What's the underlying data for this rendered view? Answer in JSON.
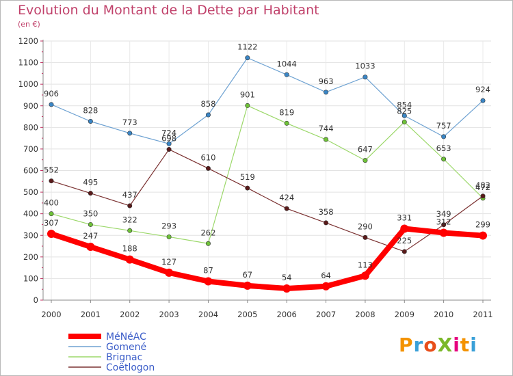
{
  "title": "Evolution du Montant de la Dette par Habitant",
  "unit": "(en €)",
  "logo": {
    "text": "ProXiti",
    "colors": [
      "#f39200",
      "#3aa0d8",
      "#e84e1b",
      "#7bb82a",
      "#e6007e",
      "#f39200",
      "#3aa0d8"
    ]
  },
  "chart_data": {
    "type": "line",
    "x": [
      "2000",
      "2001",
      "2002",
      "2003",
      "2004",
      "2005",
      "2006",
      "2007",
      "2008",
      "2009",
      "2010",
      "2011"
    ],
    "ylim": [
      0,
      1200
    ],
    "yticks": [
      0,
      100,
      200,
      300,
      400,
      500,
      600,
      700,
      800,
      900,
      1000,
      1100,
      1200
    ],
    "grid": true,
    "legend_position": "bottom-left",
    "series": [
      {
        "name": "Gomené",
        "color": "#6ea2d2",
        "marker": "#3a86c6",
        "width": 1.2,
        "values": [
          906,
          828,
          773,
          724,
          858,
          1122,
          1044,
          963,
          1033,
          854,
          757,
          924
        ]
      },
      {
        "name": "Brignac",
        "color": "#9cd86a",
        "marker": "#6ec238",
        "width": 1.2,
        "values": [
          400,
          350,
          322,
          293,
          262,
          901,
          819,
          744,
          647,
          825,
          653,
          472
        ]
      },
      {
        "name": "Coëtlogon",
        "color": "#7a3030",
        "marker": "#5a1a1a",
        "width": 1.2,
        "values": [
          552,
          495,
          437,
          698,
          610,
          519,
          424,
          358,
          290,
          225,
          349,
          482
        ]
      },
      {
        "name": "MéNéAC",
        "color": "#ff0000",
        "marker": "#ff0000",
        "width": 8,
        "values": [
          307,
          247,
          188,
          127,
          87,
          67,
          54,
          64,
          113,
          331,
          312,
          299
        ]
      }
    ],
    "legend": [
      {
        "name": "MéNéAC",
        "color": "#ff0000"
      },
      {
        "name": "Gomené",
        "color": "#6ea2d2"
      },
      {
        "name": "Brignac",
        "color": "#9cd86a"
      },
      {
        "name": "Coëtlogon",
        "color": "#7a3030"
      }
    ]
  }
}
